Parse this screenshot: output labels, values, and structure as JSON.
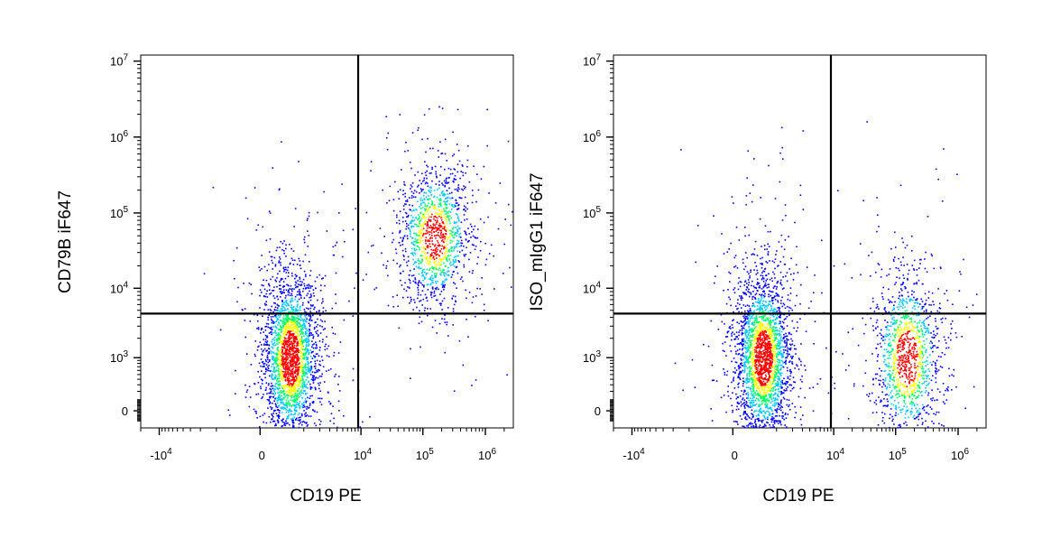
{
  "chart_data": [
    {
      "type": "scatter",
      "subtype": "flow-cytometry-density-dot-plot",
      "title": "",
      "xlabel": "CD19 PE",
      "ylabel": "CD79B iF647",
      "x_scale": "biexponential",
      "y_scale": "biexponential",
      "x_ticks": [
        {
          "value": -10000,
          "label_base": "-10",
          "label_exp": "4"
        },
        {
          "value": 0,
          "label_base": "0",
          "label_exp": ""
        },
        {
          "value": 10000,
          "label_base": "10",
          "label_exp": "4"
        },
        {
          "value": 100000,
          "label_base": "10",
          "label_exp": "5"
        },
        {
          "value": 1000000,
          "label_base": "10",
          "label_exp": "6"
        }
      ],
      "y_ticks": [
        {
          "value": 0,
          "label_base": "0",
          "label_exp": ""
        },
        {
          "value": 1000,
          "label_base": "10",
          "label_exp": "3"
        },
        {
          "value": 10000,
          "label_base": "10",
          "label_exp": "4"
        },
        {
          "value": 100000,
          "label_base": "10",
          "label_exp": "5"
        },
        {
          "value": 1000000,
          "label_base": "10",
          "label_exp": "6"
        },
        {
          "value": 10000000,
          "label_base": "10",
          "label_exp": "7"
        }
      ],
      "quadrant_gate": {
        "x": 9000,
        "y": 4500
      },
      "populations": [
        {
          "center_x": 500,
          "center_y": 1000,
          "relative_density": "high",
          "quadrant": "lower-left"
        },
        {
          "center_x": 150000,
          "center_y": 50000,
          "relative_density": "medium",
          "quadrant": "upper-right"
        }
      ],
      "density_colors": [
        "#0000ff",
        "#00c8ff",
        "#00ff64",
        "#ffff00",
        "#ff0000"
      ]
    },
    {
      "type": "scatter",
      "subtype": "flow-cytometry-density-dot-plot",
      "title": "",
      "xlabel": "CD19 PE",
      "ylabel": "ISO_mIgG1 iF647",
      "x_scale": "biexponential",
      "y_scale": "biexponential",
      "x_ticks": [
        {
          "value": -10000,
          "label_base": "-10",
          "label_exp": "4"
        },
        {
          "value": 0,
          "label_base": "0",
          "label_exp": ""
        },
        {
          "value": 10000,
          "label_base": "10",
          "label_exp": "4"
        },
        {
          "value": 100000,
          "label_base": "10",
          "label_exp": "5"
        },
        {
          "value": 1000000,
          "label_base": "10",
          "label_exp": "6"
        }
      ],
      "y_ticks": [
        {
          "value": 0,
          "label_base": "0",
          "label_exp": ""
        },
        {
          "value": 1000,
          "label_base": "10",
          "label_exp": "3"
        },
        {
          "value": 10000,
          "label_base": "10",
          "label_exp": "4"
        },
        {
          "value": 100000,
          "label_base": "10",
          "label_exp": "5"
        },
        {
          "value": 1000000,
          "label_base": "10",
          "label_exp": "6"
        },
        {
          "value": 10000000,
          "label_base": "10",
          "label_exp": "7"
        }
      ],
      "quadrant_gate": {
        "x": 9000,
        "y": 4500
      },
      "populations": [
        {
          "center_x": 500,
          "center_y": 1000,
          "relative_density": "high",
          "quadrant": "lower-left"
        },
        {
          "center_x": 150000,
          "center_y": 1000,
          "relative_density": "medium",
          "quadrant": "lower-right"
        }
      ],
      "density_colors": [
        "#0000ff",
        "#00c8ff",
        "#00ff64",
        "#ffff00",
        "#ff0000"
      ]
    }
  ]
}
